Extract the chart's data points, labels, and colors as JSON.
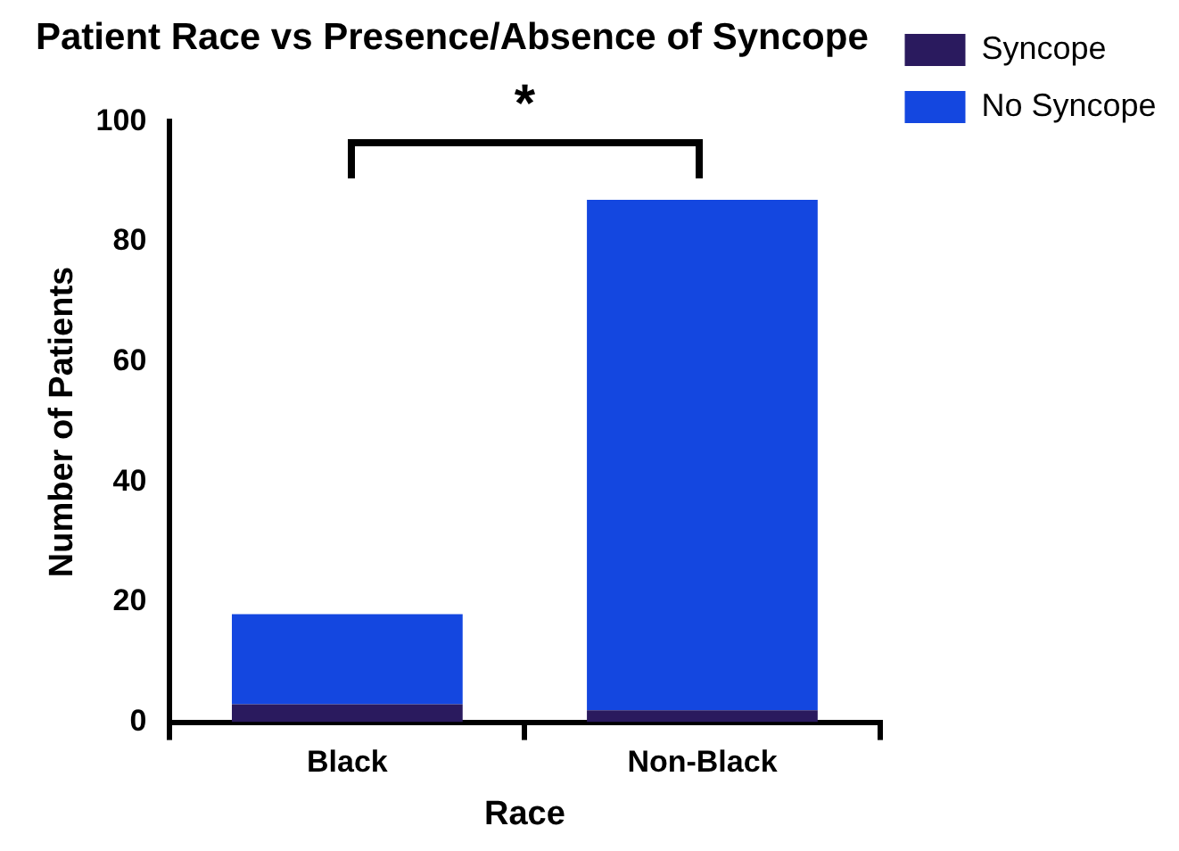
{
  "chart_data": {
    "type": "bar",
    "title": "Patient Race vs Presence/Absence of Syncope",
    "xlabel": "Race",
    "ylabel": "Number of Patients",
    "categories": [
      "Black",
      "Non-Black"
    ],
    "stacked": true,
    "series": [
      {
        "name": "Syncope",
        "color": "#2a1a5e",
        "values": [
          3,
          2
        ]
      },
      {
        "name": "No Syncope",
        "color": "#1447e0",
        "values": [
          15,
          85
        ]
      }
    ],
    "ylim": [
      0,
      100
    ],
    "yticks": [
      0,
      20,
      40,
      60,
      80,
      100
    ],
    "grid": false,
    "legend": "top right",
    "annotations": [
      "*"
    ]
  }
}
